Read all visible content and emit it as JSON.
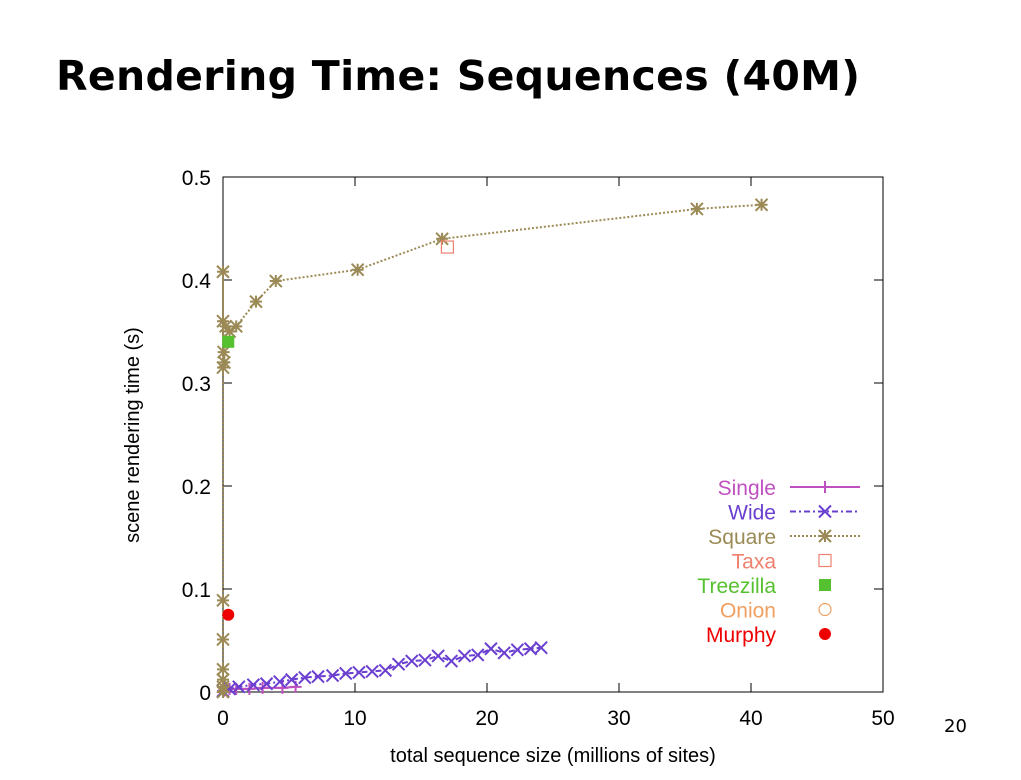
{
  "slide": {
    "title": "Rendering Time: Sequences (40M)",
    "number": "20"
  },
  "chart_data": {
    "type": "scatter",
    "xlabel": "total sequence size (millions of sites)",
    "ylabel": "scene rendering time (s)",
    "xlim": [
      0,
      50
    ],
    "ylim": [
      0,
      0.5
    ],
    "x_ticks": [
      0,
      10,
      20,
      30,
      40,
      50
    ],
    "y_ticks": [
      0,
      0.1,
      0.2,
      0.3,
      0.4,
      0.5
    ],
    "x_tick_labels": [
      "0",
      "10",
      "20",
      "30",
      "40",
      "50"
    ],
    "y_tick_labels": [
      "0",
      "0.1",
      "0.2",
      "0.3",
      "0.4",
      "0.5"
    ],
    "legend_position": "bottom-right",
    "series": [
      {
        "name": "Single",
        "color": "#c050c0",
        "marker": "plus",
        "line": "solid",
        "x": [
          0.0,
          0.05,
          0.1,
          0.2,
          0.5,
          1.0,
          2.0,
          3.0,
          4.5,
          5.5
        ],
        "y": [
          0.001,
          0.001,
          0.002,
          0.002,
          0.003,
          0.003,
          0.003,
          0.004,
          0.004,
          0.005
        ]
      },
      {
        "name": "Wide",
        "color": "#6a3fd0",
        "marker": "cross",
        "line": "dashdot",
        "x": [
          0.0,
          0.5,
          1.2,
          2.3,
          3.3,
          4.3,
          5.2,
          6.2,
          7.2,
          8.3,
          9.3,
          10.3,
          11.3,
          12.3,
          13.3,
          14.3,
          15.3,
          16.3,
          17.3,
          18.3,
          19.3,
          20.3,
          21.3,
          22.3,
          23.3,
          24.1
        ],
        "y": [
          0.001,
          0.003,
          0.005,
          0.007,
          0.008,
          0.01,
          0.012,
          0.014,
          0.015,
          0.016,
          0.018,
          0.019,
          0.02,
          0.021,
          0.027,
          0.03,
          0.031,
          0.035,
          0.03,
          0.035,
          0.036,
          0.042,
          0.038,
          0.041,
          0.042,
          0.043
        ]
      },
      {
        "name": "Square",
        "color": "#9b8a55",
        "marker": "star",
        "line": "dotted",
        "x": [
          0.0,
          0.0,
          0.0,
          0.0,
          0.0,
          0.0,
          0.0,
          0.0,
          0.0,
          0.05,
          0.1,
          0.2,
          0.5,
          1.0,
          2.5,
          4.0,
          10.2,
          16.6,
          35.9,
          40.8
        ],
        "y": [
          0.0,
          0.005,
          0.012,
          0.022,
          0.051,
          0.089,
          0.408,
          0.36,
          0.315,
          0.33,
          0.32,
          0.355,
          0.35,
          0.355,
          0.379,
          0.399,
          0.41,
          0.44,
          0.469,
          0.473
        ]
      },
      {
        "name": "Taxa",
        "color": "#f08070",
        "marker": "open-square",
        "line": "none",
        "x": [
          17.0
        ],
        "y": [
          0.432
        ]
      },
      {
        "name": "Treezilla",
        "color": "#55c030",
        "marker": "filled-square",
        "line": "none",
        "x": [
          0.4
        ],
        "y": [
          0.34
        ]
      },
      {
        "name": "Onion",
        "color": "#f0a060",
        "marker": "open-circle",
        "line": "none",
        "x": [],
        "y": []
      },
      {
        "name": "Murphy",
        "color": "#ee0000",
        "marker": "filled-circle",
        "line": "none",
        "x": [
          0.4
        ],
        "y": [
          0.075
        ]
      }
    ]
  }
}
